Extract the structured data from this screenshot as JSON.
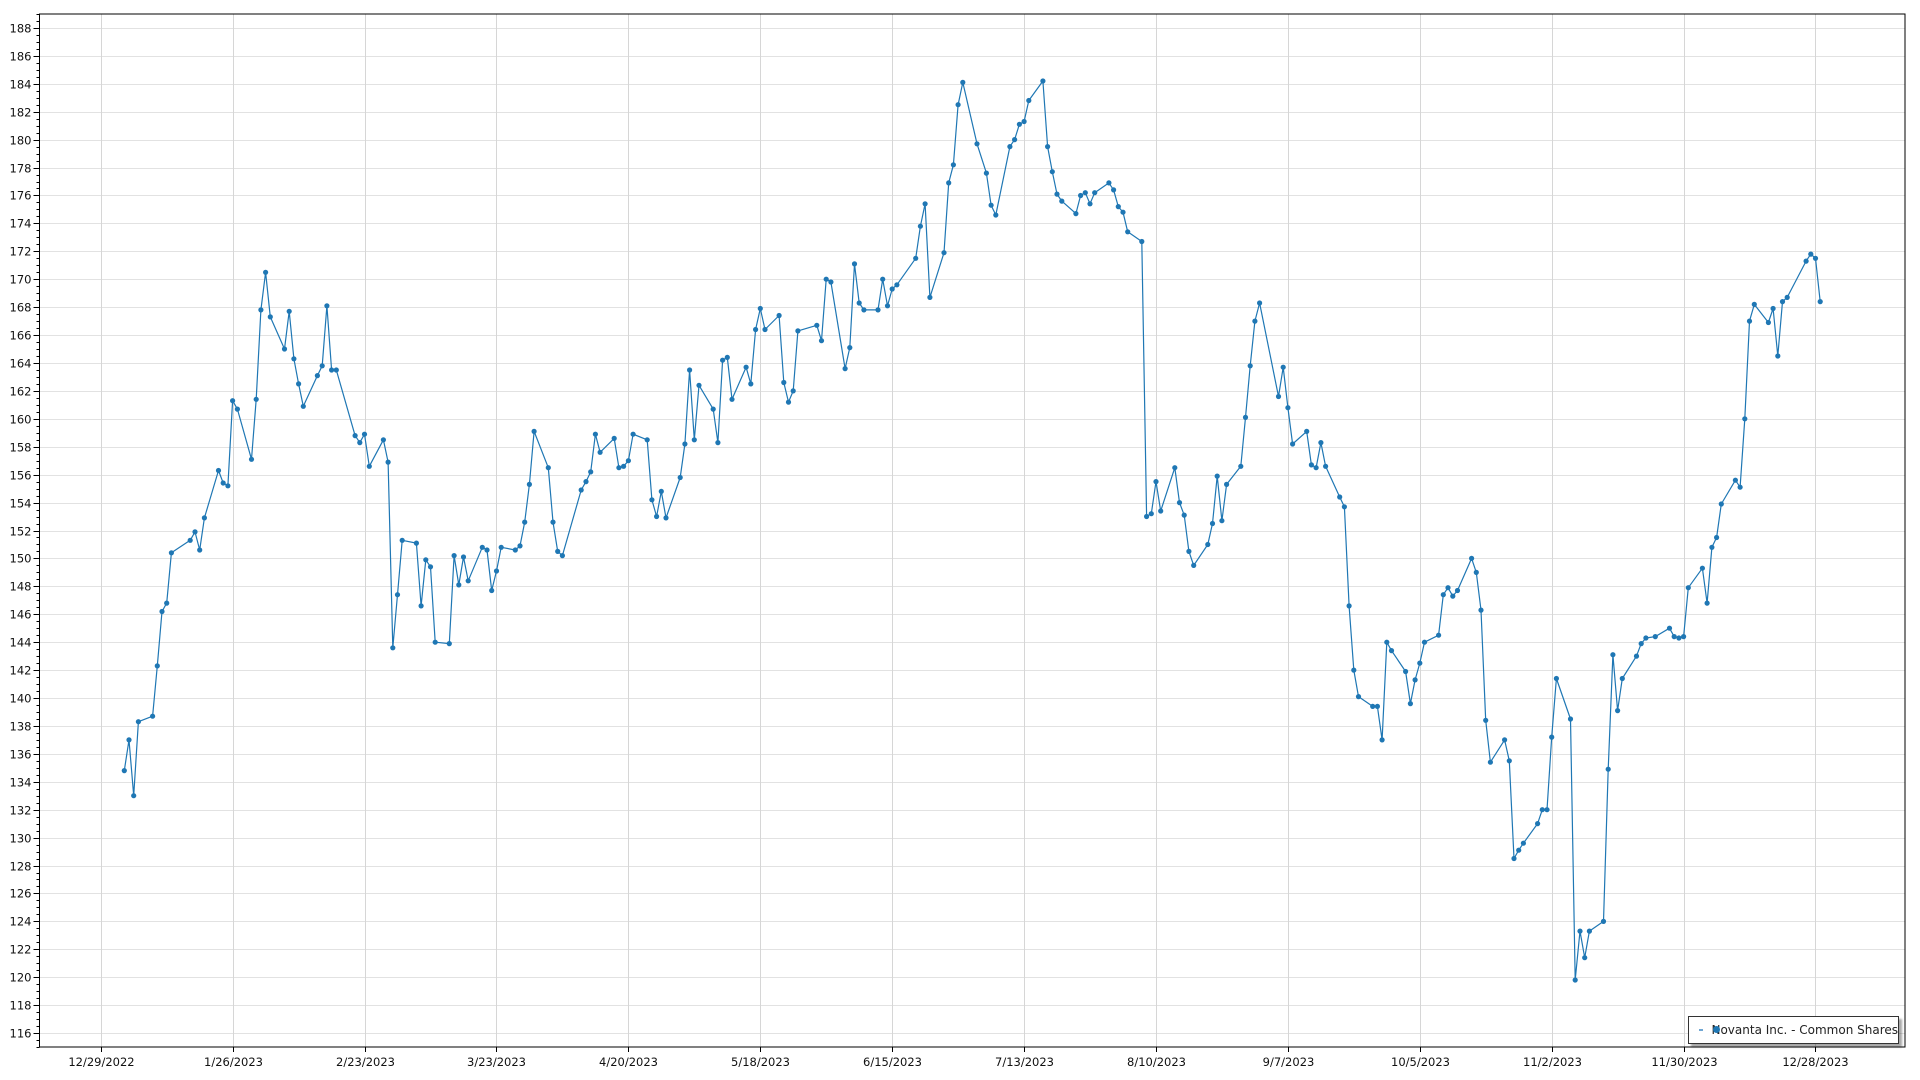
{
  "chart_data": {
    "type": "line",
    "title": "",
    "xlabel": "",
    "ylabel": "",
    "xlim": [
      "2022-12-16",
      "2024-01-16"
    ],
    "ylim": [
      115,
      189
    ],
    "grid": true,
    "legend_position": "bottom-right",
    "x_tick_labels": [
      "12/29/2022",
      "1/26/2023",
      "2/23/2023",
      "3/23/2023",
      "4/20/2023",
      "5/18/2023",
      "6/15/2023",
      "7/13/2023",
      "8/10/2023",
      "9/7/2023",
      "10/5/2023",
      "11/2/2023",
      "11/30/2023",
      "12/28/2023"
    ],
    "x_tick_dates": [
      "2022-12-29",
      "2023-01-26",
      "2023-02-23",
      "2023-03-23",
      "2023-04-20",
      "2023-05-18",
      "2023-06-15",
      "2023-07-13",
      "2023-08-10",
      "2023-09-07",
      "2023-10-05",
      "2023-11-02",
      "2023-11-30",
      "2023-12-28"
    ],
    "y_ticks": [
      116,
      118,
      120,
      122,
      124,
      126,
      128,
      130,
      132,
      134,
      136,
      138,
      140,
      142,
      144,
      146,
      148,
      150,
      152,
      154,
      156,
      158,
      160,
      162,
      164,
      166,
      168,
      170,
      172,
      174,
      176,
      178,
      180,
      182,
      184,
      186,
      188
    ],
    "series": [
      {
        "name": "Novanta Inc. - Common Shares",
        "color": "#1f77b4",
        "marker": "circle",
        "points": [
          [
            "2023-01-03",
            134.8
          ],
          [
            "2023-01-04",
            137.0
          ],
          [
            "2023-01-05",
            133.0
          ],
          [
            "2023-01-06",
            138.3
          ],
          [
            "2023-01-09",
            138.7
          ],
          [
            "2023-01-10",
            142.3
          ],
          [
            "2023-01-11",
            146.2
          ],
          [
            "2023-01-12",
            146.8
          ],
          [
            "2023-01-13",
            150.4
          ],
          [
            "2023-01-17",
            151.3
          ],
          [
            "2023-01-18",
            151.9
          ],
          [
            "2023-01-19",
            150.6
          ],
          [
            "2023-01-20",
            152.9
          ],
          [
            "2023-01-23",
            156.3
          ],
          [
            "2023-01-24",
            155.4
          ],
          [
            "2023-01-25",
            155.2
          ],
          [
            "2023-01-26",
            161.3
          ],
          [
            "2023-01-27",
            160.7
          ],
          [
            "2023-01-30",
            157.1
          ],
          [
            "2023-01-31",
            161.4
          ],
          [
            "2023-02-01",
            167.8
          ],
          [
            "2023-02-02",
            170.5
          ],
          [
            "2023-02-03",
            167.3
          ],
          [
            "2023-02-06",
            165.0
          ],
          [
            "2023-02-07",
            167.7
          ],
          [
            "2023-02-08",
            164.3
          ],
          [
            "2023-02-09",
            162.5
          ],
          [
            "2023-02-10",
            160.9
          ],
          [
            "2023-02-13",
            163.1
          ],
          [
            "2023-02-14",
            163.8
          ],
          [
            "2023-02-15",
            168.1
          ],
          [
            "2023-02-16",
            163.5
          ],
          [
            "2023-02-17",
            163.5
          ],
          [
            "2023-02-21",
            158.8
          ],
          [
            "2023-02-22",
            158.3
          ],
          [
            "2023-02-23",
            158.9
          ],
          [
            "2023-02-24",
            156.6
          ],
          [
            "2023-02-27",
            158.5
          ],
          [
            "2023-02-28",
            156.9
          ],
          [
            "2023-03-01",
            143.6
          ],
          [
            "2023-03-02",
            147.4
          ],
          [
            "2023-03-03",
            151.3
          ],
          [
            "2023-03-06",
            151.1
          ],
          [
            "2023-03-07",
            146.6
          ],
          [
            "2023-03-08",
            149.9
          ],
          [
            "2023-03-09",
            149.4
          ],
          [
            "2023-03-10",
            144.0
          ],
          [
            "2023-03-13",
            143.9
          ],
          [
            "2023-03-14",
            150.2
          ],
          [
            "2023-03-15",
            148.1
          ],
          [
            "2023-03-16",
            150.1
          ],
          [
            "2023-03-17",
            148.4
          ],
          [
            "2023-03-20",
            150.8
          ],
          [
            "2023-03-21",
            150.6
          ],
          [
            "2023-03-22",
            147.7
          ],
          [
            "2023-03-23",
            149.1
          ],
          [
            "2023-03-24",
            150.8
          ],
          [
            "2023-03-27",
            150.6
          ],
          [
            "2023-03-28",
            150.9
          ],
          [
            "2023-03-29",
            152.6
          ],
          [
            "2023-03-30",
            155.3
          ],
          [
            "2023-03-31",
            159.1
          ],
          [
            "2023-04-03",
            156.5
          ],
          [
            "2023-04-04",
            152.6
          ],
          [
            "2023-04-05",
            150.5
          ],
          [
            "2023-04-06",
            150.2
          ],
          [
            "2023-04-10",
            154.9
          ],
          [
            "2023-04-11",
            155.5
          ],
          [
            "2023-04-12",
            156.2
          ],
          [
            "2023-04-13",
            158.9
          ],
          [
            "2023-04-14",
            157.6
          ],
          [
            "2023-04-17",
            158.6
          ],
          [
            "2023-04-18",
            156.5
          ],
          [
            "2023-04-19",
            156.6
          ],
          [
            "2023-04-20",
            157.0
          ],
          [
            "2023-04-21",
            158.9
          ],
          [
            "2023-04-24",
            158.5
          ],
          [
            "2023-04-25",
            154.2
          ],
          [
            "2023-04-26",
            153.0
          ],
          [
            "2023-04-27",
            154.8
          ],
          [
            "2023-04-28",
            152.9
          ],
          [
            "2023-05-01",
            155.8
          ],
          [
            "2023-05-02",
            158.2
          ],
          [
            "2023-05-03",
            163.5
          ],
          [
            "2023-05-04",
            158.5
          ],
          [
            "2023-05-05",
            162.4
          ],
          [
            "2023-05-08",
            160.7
          ],
          [
            "2023-05-09",
            158.3
          ],
          [
            "2023-05-10",
            164.2
          ],
          [
            "2023-05-11",
            164.4
          ],
          [
            "2023-05-12",
            161.4
          ],
          [
            "2023-05-15",
            163.7
          ],
          [
            "2023-05-16",
            162.5
          ],
          [
            "2023-05-17",
            166.4
          ],
          [
            "2023-05-18",
            167.9
          ],
          [
            "2023-05-19",
            166.4
          ],
          [
            "2023-05-22",
            167.4
          ],
          [
            "2023-05-23",
            162.6
          ],
          [
            "2023-05-24",
            161.2
          ],
          [
            "2023-05-25",
            162.0
          ],
          [
            "2023-05-26",
            166.3
          ],
          [
            "2023-05-30",
            166.7
          ],
          [
            "2023-05-31",
            165.6
          ],
          [
            "2023-06-01",
            170.0
          ],
          [
            "2023-06-02",
            169.8
          ],
          [
            "2023-06-05",
            163.6
          ],
          [
            "2023-06-06",
            165.1
          ],
          [
            "2023-06-07",
            171.1
          ],
          [
            "2023-06-08",
            168.3
          ],
          [
            "2023-06-09",
            167.8
          ],
          [
            "2023-06-12",
            167.8
          ],
          [
            "2023-06-13",
            170.0
          ],
          [
            "2023-06-14",
            168.1
          ],
          [
            "2023-06-15",
            169.3
          ],
          [
            "2023-06-16",
            169.6
          ],
          [
            "2023-06-20",
            171.5
          ],
          [
            "2023-06-21",
            173.8
          ],
          [
            "2023-06-22",
            175.4
          ],
          [
            "2023-06-23",
            168.7
          ],
          [
            "2023-06-26",
            171.9
          ],
          [
            "2023-06-27",
            176.9
          ],
          [
            "2023-06-28",
            178.2
          ],
          [
            "2023-06-29",
            182.5
          ],
          [
            "2023-06-30",
            184.1
          ],
          [
            "2023-07-03",
            179.7
          ],
          [
            "2023-07-05",
            177.6
          ],
          [
            "2023-07-06",
            175.3
          ],
          [
            "2023-07-07",
            174.6
          ],
          [
            "2023-07-10",
            179.5
          ],
          [
            "2023-07-11",
            180.0
          ],
          [
            "2023-07-12",
            181.1
          ],
          [
            "2023-07-13",
            181.3
          ],
          [
            "2023-07-14",
            182.8
          ],
          [
            "2023-07-17",
            184.2
          ],
          [
            "2023-07-18",
            179.5
          ],
          [
            "2023-07-19",
            177.7
          ],
          [
            "2023-07-20",
            176.1
          ],
          [
            "2023-07-21",
            175.6
          ],
          [
            "2023-07-24",
            174.7
          ],
          [
            "2023-07-25",
            176.0
          ],
          [
            "2023-07-26",
            176.2
          ],
          [
            "2023-07-27",
            175.4
          ],
          [
            "2023-07-28",
            176.2
          ],
          [
            "2023-07-31",
            176.9
          ],
          [
            "2023-08-01",
            176.4
          ],
          [
            "2023-08-02",
            175.2
          ],
          [
            "2023-08-03",
            174.8
          ],
          [
            "2023-08-04",
            173.4
          ],
          [
            "2023-08-07",
            172.7
          ],
          [
            "2023-08-08",
            153.0
          ],
          [
            "2023-08-09",
            153.2
          ],
          [
            "2023-08-10",
            155.5
          ],
          [
            "2023-08-11",
            153.4
          ],
          [
            "2023-08-14",
            156.5
          ],
          [
            "2023-08-15",
            154.0
          ],
          [
            "2023-08-16",
            153.1
          ],
          [
            "2023-08-17",
            150.5
          ],
          [
            "2023-08-18",
            149.5
          ],
          [
            "2023-08-21",
            151.0
          ],
          [
            "2023-08-22",
            152.5
          ],
          [
            "2023-08-23",
            155.9
          ],
          [
            "2023-08-24",
            152.7
          ],
          [
            "2023-08-25",
            155.3
          ],
          [
            "2023-08-28",
            156.6
          ],
          [
            "2023-08-29",
            160.1
          ],
          [
            "2023-08-30",
            163.8
          ],
          [
            "2023-08-31",
            167.0
          ],
          [
            "2023-09-01",
            168.3
          ],
          [
            "2023-09-05",
            161.6
          ],
          [
            "2023-09-06",
            163.7
          ],
          [
            "2023-09-07",
            160.8
          ],
          [
            "2023-09-08",
            158.2
          ],
          [
            "2023-09-11",
            159.1
          ],
          [
            "2023-09-12",
            156.7
          ],
          [
            "2023-09-13",
            156.5
          ],
          [
            "2023-09-14",
            158.3
          ],
          [
            "2023-09-15",
            156.6
          ],
          [
            "2023-09-18",
            154.4
          ],
          [
            "2023-09-19",
            153.7
          ],
          [
            "2023-09-20",
            146.6
          ],
          [
            "2023-09-21",
            142.0
          ],
          [
            "2023-09-22",
            140.1
          ],
          [
            "2023-09-25",
            139.4
          ],
          [
            "2023-09-26",
            139.4
          ],
          [
            "2023-09-27",
            137.0
          ],
          [
            "2023-09-28",
            144.0
          ],
          [
            "2023-09-29",
            143.4
          ],
          [
            "2023-10-02",
            141.9
          ],
          [
            "2023-10-03",
            139.6
          ],
          [
            "2023-10-04",
            141.3
          ],
          [
            "2023-10-05",
            142.5
          ],
          [
            "2023-10-06",
            144.0
          ],
          [
            "2023-10-09",
            144.5
          ],
          [
            "2023-10-10",
            147.4
          ],
          [
            "2023-10-11",
            147.9
          ],
          [
            "2023-10-12",
            147.3
          ],
          [
            "2023-10-13",
            147.7
          ],
          [
            "2023-10-16",
            150.0
          ],
          [
            "2023-10-17",
            149.0
          ],
          [
            "2023-10-18",
            146.3
          ],
          [
            "2023-10-19",
            138.4
          ],
          [
            "2023-10-20",
            135.4
          ],
          [
            "2023-10-23",
            137.0
          ],
          [
            "2023-10-24",
            135.5
          ],
          [
            "2023-10-25",
            128.5
          ],
          [
            "2023-10-26",
            129.1
          ],
          [
            "2023-10-27",
            129.6
          ],
          [
            "2023-10-30",
            131.0
          ],
          [
            "2023-10-31",
            132.0
          ],
          [
            "2023-11-01",
            132.0
          ],
          [
            "2023-11-02",
            137.2
          ],
          [
            "2023-11-03",
            141.4
          ],
          [
            "2023-11-06",
            138.5
          ],
          [
            "2023-11-07",
            119.8
          ],
          [
            "2023-11-08",
            123.3
          ],
          [
            "2023-11-09",
            121.4
          ],
          [
            "2023-11-10",
            123.3
          ],
          [
            "2023-11-13",
            124.0
          ],
          [
            "2023-11-14",
            134.9
          ],
          [
            "2023-11-15",
            143.1
          ],
          [
            "2023-11-16",
            139.1
          ],
          [
            "2023-11-17",
            141.4
          ],
          [
            "2023-11-20",
            143.0
          ],
          [
            "2023-11-21",
            143.9
          ],
          [
            "2023-11-22",
            144.3
          ],
          [
            "2023-11-24",
            144.4
          ],
          [
            "2023-11-27",
            145.0
          ],
          [
            "2023-11-28",
            144.4
          ],
          [
            "2023-11-29",
            144.3
          ],
          [
            "2023-11-30",
            144.4
          ],
          [
            "2023-12-01",
            147.9
          ],
          [
            "2023-12-04",
            149.3
          ],
          [
            "2023-12-05",
            146.8
          ],
          [
            "2023-12-06",
            150.8
          ],
          [
            "2023-12-07",
            151.5
          ],
          [
            "2023-12-08",
            153.9
          ],
          [
            "2023-12-11",
            155.6
          ],
          [
            "2023-12-12",
            155.1
          ],
          [
            "2023-12-13",
            160.0
          ],
          [
            "2023-12-14",
            167.0
          ],
          [
            "2023-12-15",
            168.2
          ],
          [
            "2023-12-18",
            166.9
          ],
          [
            "2023-12-19",
            167.9
          ],
          [
            "2023-12-20",
            164.5
          ],
          [
            "2023-12-21",
            168.4
          ],
          [
            "2023-12-22",
            168.7
          ],
          [
            "2023-12-26",
            171.3
          ],
          [
            "2023-12-27",
            171.8
          ],
          [
            "2023-12-28",
            171.5
          ],
          [
            "2023-12-29",
            168.4
          ]
        ]
      }
    ]
  },
  "legend": {
    "label": "Novanta Inc. - Common Shares"
  }
}
